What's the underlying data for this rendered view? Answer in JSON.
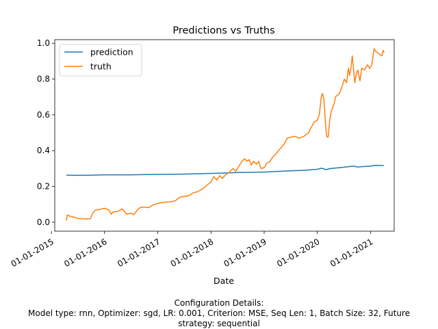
{
  "chart_data": {
    "type": "line",
    "title": "Predictions vs Truths",
    "xlabel": "Date",
    "ylabel": "",
    "grid": false,
    "legend_position": "top-left",
    "x_type": "date",
    "xlim": [
      "2015-01-24",
      "2021-06-12"
    ],
    "ylim": [
      -0.05,
      1.02
    ],
    "x_ticks": [
      "2015-01-01",
      "2016-01-01",
      "2017-01-01",
      "2018-01-01",
      "2019-01-01",
      "2020-01-01",
      "2021-01-01"
    ],
    "x_tick_labels": [
      "01-01-2015",
      "01-01-2016",
      "01-01-2017",
      "01-01-2018",
      "01-01-2019",
      "01-01-2020",
      "01-01-2021"
    ],
    "y_ticks": [
      0.0,
      0.2,
      0.4,
      0.6,
      0.8,
      1.0
    ],
    "y_tick_labels": [
      "0.0",
      "0.2",
      "0.4",
      "0.6",
      "0.8",
      "1.0"
    ],
    "series": [
      {
        "name": "prediction",
        "color": "#1f77b4",
        "points": [
          [
            "2015-04-14",
            0.263
          ],
          [
            "2015-07-01",
            0.262
          ],
          [
            "2015-10-01",
            0.263
          ],
          [
            "2016-01-01",
            0.265
          ],
          [
            "2016-04-01",
            0.265
          ],
          [
            "2016-07-01",
            0.265
          ],
          [
            "2016-10-01",
            0.266
          ],
          [
            "2017-01-01",
            0.267
          ],
          [
            "2017-04-01",
            0.268
          ],
          [
            "2017-07-01",
            0.269
          ],
          [
            "2017-10-01",
            0.271
          ],
          [
            "2018-01-01",
            0.273
          ],
          [
            "2018-04-01",
            0.275
          ],
          [
            "2018-07-01",
            0.278
          ],
          [
            "2018-10-01",
            0.279
          ],
          [
            "2019-01-01",
            0.28
          ],
          [
            "2019-04-01",
            0.284
          ],
          [
            "2019-07-01",
            0.287
          ],
          [
            "2019-10-01",
            0.29
          ],
          [
            "2020-01-01",
            0.296
          ],
          [
            "2020-02-01",
            0.302
          ],
          [
            "2020-03-01",
            0.294
          ],
          [
            "2020-04-01",
            0.3
          ],
          [
            "2020-06-01",
            0.305
          ],
          [
            "2020-08-01",
            0.31
          ],
          [
            "2020-09-01",
            0.314
          ],
          [
            "2020-10-01",
            0.309
          ],
          [
            "2020-12-01",
            0.312
          ],
          [
            "2021-01-01",
            0.314
          ],
          [
            "2021-02-01",
            0.318
          ],
          [
            "2021-04-01",
            0.317
          ]
        ]
      },
      {
        "name": "truth",
        "color": "#ff7f0e",
        "points": [
          [
            "2015-04-14",
            0.01
          ],
          [
            "2015-04-20",
            0.04
          ],
          [
            "2015-05-01",
            0.037
          ],
          [
            "2015-05-15",
            0.032
          ],
          [
            "2015-06-01",
            0.03
          ],
          [
            "2015-06-15",
            0.025
          ],
          [
            "2015-07-01",
            0.022
          ],
          [
            "2015-08-01",
            0.02
          ],
          [
            "2015-09-01",
            0.018
          ],
          [
            "2015-09-25",
            0.02
          ],
          [
            "2015-10-15",
            0.055
          ],
          [
            "2015-11-01",
            0.068
          ],
          [
            "2015-12-01",
            0.072
          ],
          [
            "2016-01-01",
            0.078
          ],
          [
            "2016-02-01",
            0.068
          ],
          [
            "2016-02-15",
            0.045
          ],
          [
            "2016-03-01",
            0.058
          ],
          [
            "2016-04-01",
            0.06
          ],
          [
            "2016-05-01",
            0.075
          ],
          [
            "2016-06-01",
            0.045
          ],
          [
            "2016-07-01",
            0.05
          ],
          [
            "2016-07-20",
            0.042
          ],
          [
            "2016-08-15",
            0.07
          ],
          [
            "2016-09-01",
            0.082
          ],
          [
            "2016-10-01",
            0.085
          ],
          [
            "2016-11-01",
            0.082
          ],
          [
            "2016-12-01",
            0.098
          ],
          [
            "2017-01-01",
            0.105
          ],
          [
            "2017-02-01",
            0.11
          ],
          [
            "2017-04-01",
            0.115
          ],
          [
            "2017-05-01",
            0.12
          ],
          [
            "2017-06-01",
            0.14
          ],
          [
            "2017-07-01",
            0.145
          ],
          [
            "2017-08-01",
            0.148
          ],
          [
            "2017-09-01",
            0.165
          ],
          [
            "2017-10-01",
            0.17
          ],
          [
            "2017-11-01",
            0.185
          ],
          [
            "2017-12-01",
            0.205
          ],
          [
            "2018-01-01",
            0.225
          ],
          [
            "2018-01-20",
            0.255
          ],
          [
            "2018-02-10",
            0.235
          ],
          [
            "2018-03-01",
            0.26
          ],
          [
            "2018-03-20",
            0.245
          ],
          [
            "2018-04-10",
            0.265
          ],
          [
            "2018-05-01",
            0.275
          ],
          [
            "2018-06-01",
            0.3
          ],
          [
            "2018-06-20",
            0.285
          ],
          [
            "2018-07-10",
            0.31
          ],
          [
            "2018-08-01",
            0.34
          ],
          [
            "2018-08-20",
            0.355
          ],
          [
            "2018-09-05",
            0.34
          ],
          [
            "2018-09-20",
            0.35
          ],
          [
            "2018-10-05",
            0.32
          ],
          [
            "2018-10-20",
            0.34
          ],
          [
            "2018-11-10",
            0.325
          ],
          [
            "2018-11-25",
            0.34
          ],
          [
            "2018-12-10",
            0.3
          ],
          [
            "2019-01-01",
            0.305
          ],
          [
            "2019-01-20",
            0.33
          ],
          [
            "2019-02-10",
            0.34
          ],
          [
            "2019-03-01",
            0.365
          ],
          [
            "2019-03-20",
            0.38
          ],
          [
            "2019-04-10",
            0.4
          ],
          [
            "2019-05-01",
            0.42
          ],
          [
            "2019-05-20",
            0.44
          ],
          [
            "2019-06-10",
            0.47
          ],
          [
            "2019-07-01",
            0.475
          ],
          [
            "2019-08-01",
            0.48
          ],
          [
            "2019-09-01",
            0.47
          ],
          [
            "2019-10-01",
            0.48
          ],
          [
            "2019-11-01",
            0.5
          ],
          [
            "2019-11-20",
            0.53
          ],
          [
            "2019-12-10",
            0.56
          ],
          [
            "2020-01-01",
            0.57
          ],
          [
            "2020-01-15",
            0.6
          ],
          [
            "2020-01-28",
            0.7
          ],
          [
            "2020-02-05",
            0.72
          ],
          [
            "2020-02-15",
            0.69
          ],
          [
            "2020-02-25",
            0.56
          ],
          [
            "2020-03-05",
            0.48
          ],
          [
            "2020-03-15",
            0.475
          ],
          [
            "2020-03-25",
            0.56
          ],
          [
            "2020-04-05",
            0.62
          ],
          [
            "2020-04-15",
            0.64
          ],
          [
            "2020-04-25",
            0.66
          ],
          [
            "2020-05-05",
            0.7
          ],
          [
            "2020-06-01",
            0.72
          ],
          [
            "2020-06-20",
            0.76
          ],
          [
            "2020-07-05",
            0.8
          ],
          [
            "2020-07-20",
            0.78
          ],
          [
            "2020-08-01",
            0.86
          ],
          [
            "2020-08-10",
            0.82
          ],
          [
            "2020-08-20",
            0.87
          ],
          [
            "2020-08-28",
            0.93
          ],
          [
            "2020-09-05",
            0.86
          ],
          [
            "2020-09-15",
            0.78
          ],
          [
            "2020-09-25",
            0.83
          ],
          [
            "2020-10-05",
            0.85
          ],
          [
            "2020-10-20",
            0.79
          ],
          [
            "2020-11-01",
            0.86
          ],
          [
            "2020-11-20",
            0.85
          ],
          [
            "2020-12-10",
            0.88
          ],
          [
            "2020-12-25",
            0.86
          ],
          [
            "2021-01-10",
            0.88
          ],
          [
            "2021-01-25",
            0.97
          ],
          [
            "2021-02-10",
            0.95
          ],
          [
            "2021-03-01",
            0.94
          ],
          [
            "2021-03-20",
            0.93
          ],
          [
            "2021-03-28",
            0.96
          ],
          [
            "2021-04-05",
            0.95
          ]
        ]
      }
    ]
  },
  "caption": {
    "line1": "Configuration Details:",
    "line2": "Model type: rnn, Optimizer: sgd, LR: 0.001, Criterion: MSE, Seq Len: 1, Batch Size: 32, Future",
    "line3": "strategy: sequential"
  }
}
